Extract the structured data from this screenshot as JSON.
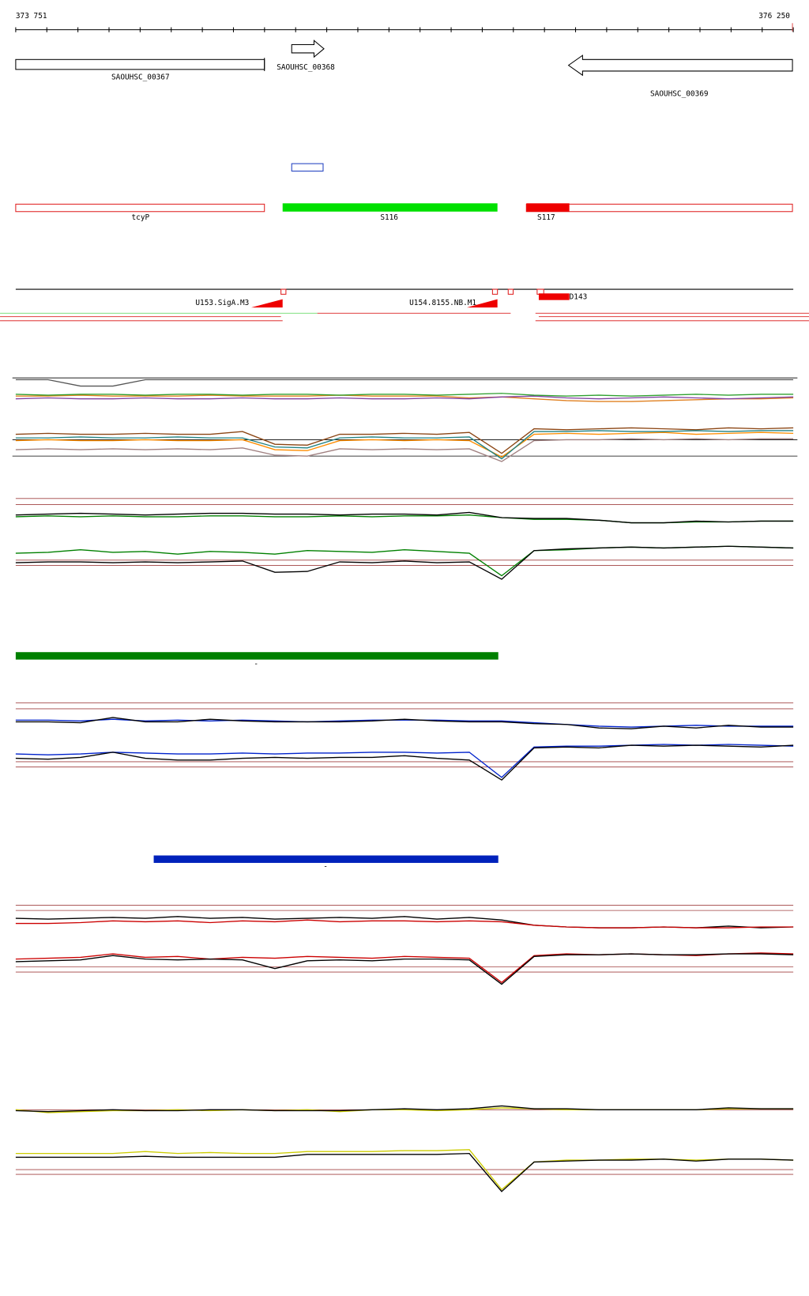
{
  "ruler": {
    "start": "373 751",
    "end": "376 250"
  },
  "genes": [
    {
      "label": "SAOUHSC_00367"
    },
    {
      "label": "SAOUHSC_00368"
    },
    {
      "label": "SAOUHSC_00369"
    }
  ],
  "features": [
    {
      "label": "tcyP"
    },
    {
      "label": "S116"
    },
    {
      "label": "S117"
    }
  ],
  "promoters": [
    {
      "label": "U153.SigA.M3"
    },
    {
      "label": "U154.8155.NB.M1"
    },
    {
      "label": "D143"
    }
  ],
  "bars": [
    {
      "color": "#008000",
      "label": "-"
    },
    {
      "color": "#0022bb",
      "label": "-"
    }
  ],
  "panels": [
    {
      "ylim": [
        0,
        10
      ],
      "reference": [
        {
          "color": "#000000",
          "value": 9.8
        },
        {
          "color": "#000000",
          "value": 3.0
        },
        {
          "color": "#000000",
          "value": 1.2
        }
      ],
      "series": [
        {
          "color": "#555555",
          "values": [
            9.6,
            9.6,
            8.9,
            8.9,
            9.6,
            9.6,
            9.6,
            9.6,
            9.6,
            9.6,
            9.6,
            9.6,
            9.6,
            9.6,
            9.6,
            9.6,
            9.6,
            9.6,
            9.6,
            9.6,
            9.6,
            9.6,
            9.6,
            9.6,
            9.6
          ]
        },
        {
          "color": "#e08020",
          "values": [
            7.8,
            7.8,
            7.9,
            7.8,
            7.8,
            7.8,
            7.9,
            7.8,
            7.8,
            7.8,
            7.9,
            7.8,
            7.8,
            7.8,
            7.6,
            7.7,
            7.5,
            7.3,
            7.2,
            7.2,
            7.3,
            7.4,
            7.5,
            7.5,
            7.6
          ]
        },
        {
          "color": "#8040a0",
          "values": [
            7.5,
            7.6,
            7.5,
            7.5,
            7.6,
            7.5,
            7.5,
            7.6,
            7.5,
            7.5,
            7.6,
            7.5,
            7.5,
            7.6,
            7.5,
            7.7,
            7.8,
            7.6,
            7.5,
            7.6,
            7.7,
            7.6,
            7.5,
            7.6,
            7.7
          ]
        },
        {
          "color": "#30a030",
          "values": [
            8.0,
            7.9,
            8.0,
            8.0,
            7.9,
            8.0,
            8.0,
            7.9,
            8.0,
            8.0,
            7.9,
            8.0,
            8.0,
            7.9,
            8.0,
            8.1,
            7.9,
            7.8,
            7.9,
            7.8,
            7.9,
            8.0,
            7.9,
            8.0,
            8.0
          ]
        },
        {
          "color": "#8b4513",
          "values": [
            3.6,
            3.7,
            3.6,
            3.6,
            3.7,
            3.6,
            3.6,
            3.9,
            2.5,
            2.4,
            3.6,
            3.6,
            3.7,
            3.6,
            3.8,
            1.5,
            4.2,
            4.1,
            4.2,
            4.3,
            4.2,
            4.1,
            4.3,
            4.2,
            4.3
          ]
        },
        {
          "color": "#ff8c00",
          "values": [
            2.9,
            3.0,
            2.9,
            2.9,
            3.0,
            2.9,
            2.9,
            3.0,
            1.9,
            1.8,
            2.9,
            3.0,
            2.9,
            3.0,
            2.9,
            1.1,
            3.6,
            3.7,
            3.6,
            3.7,
            3.8,
            3.6,
            3.7,
            3.8,
            3.7
          ]
        },
        {
          "color": "#208080",
          "values": [
            3.2,
            3.2,
            3.3,
            3.2,
            3.2,
            3.3,
            3.2,
            3.2,
            2.2,
            2.1,
            3.2,
            3.3,
            3.2,
            3.2,
            3.3,
            0.9,
            3.9,
            3.9,
            4.0,
            3.9,
            3.9,
            4.0,
            3.9,
            4.0,
            4.0
          ]
        },
        {
          "color": "#a08080",
          "values": [
            1.9,
            2.0,
            1.9,
            2.0,
            1.9,
            2.0,
            1.9,
            2.1,
            1.3,
            1.2,
            2.0,
            1.9,
            2.0,
            1.9,
            2.0,
            0.6,
            2.9,
            3.0,
            3.0,
            3.1,
            3.0,
            3.1,
            3.0,
            3.1,
            3.1
          ]
        }
      ]
    },
    {
      "ylim": [
        0,
        10
      ],
      "reference": [
        {
          "color": "#a04040",
          "value": 9.7
        },
        {
          "color": "#a04040",
          "value": 9.0
        },
        {
          "color": "#a04040",
          "value": 2.6
        },
        {
          "color": "#a04040",
          "value": 2.0
        }
      ],
      "series": [
        {
          "color": "#008000",
          "values": [
            7.6,
            7.7,
            7.6,
            7.7,
            7.6,
            7.6,
            7.7,
            7.7,
            7.6,
            7.6,
            7.7,
            7.6,
            7.7,
            7.7,
            7.8,
            7.5,
            7.3,
            7.3,
            7.2,
            6.9,
            6.9,
            7.0,
            7.0,
            7.1,
            7.1
          ]
        },
        {
          "color": "#000000",
          "values": [
            7.8,
            7.9,
            8.0,
            7.9,
            7.8,
            7.9,
            8.0,
            8.0,
            7.9,
            7.9,
            7.8,
            7.9,
            7.9,
            7.8,
            8.1,
            7.5,
            7.4,
            7.4,
            7.2,
            6.9,
            6.9,
            7.1,
            7.0,
            7.1,
            7.1
          ]
        },
        {
          "color": "#008000",
          "values": [
            3.4,
            3.5,
            3.8,
            3.5,
            3.6,
            3.3,
            3.6,
            3.5,
            3.3,
            3.7,
            3.6,
            3.5,
            3.8,
            3.6,
            3.4,
            0.8,
            3.7,
            3.8,
            4.0,
            4.1,
            4.0,
            4.1,
            4.2,
            4.1,
            4.0
          ]
        },
        {
          "color": "#000000",
          "values": [
            2.3,
            2.4,
            2.4,
            2.3,
            2.4,
            2.3,
            2.4,
            2.5,
            1.2,
            1.3,
            2.4,
            2.3,
            2.5,
            2.3,
            2.4,
            0.4,
            3.7,
            3.9,
            4.0,
            4.1,
            4.0,
            4.1,
            4.2,
            4.1,
            4.0
          ]
        }
      ]
    },
    {
      "ylim": [
        0,
        10
      ],
      "reference": [
        {
          "color": "#a04040",
          "value": 9.5
        },
        {
          "color": "#a04040",
          "value": 8.8
        },
        {
          "color": "#a04040",
          "value": 2.7
        },
        {
          "color": "#a04040",
          "value": 2.1
        }
      ],
      "series": [
        {
          "color": "#0022cc",
          "values": [
            7.5,
            7.5,
            7.4,
            7.6,
            7.4,
            7.5,
            7.4,
            7.5,
            7.4,
            7.3,
            7.4,
            7.5,
            7.5,
            7.5,
            7.4,
            7.4,
            7.2,
            7.0,
            6.8,
            6.7,
            6.8,
            6.9,
            6.8,
            6.8,
            6.8
          ]
        },
        {
          "color": "#000000",
          "values": [
            7.3,
            7.3,
            7.2,
            7.8,
            7.3,
            7.3,
            7.6,
            7.4,
            7.3,
            7.3,
            7.3,
            7.4,
            7.6,
            7.4,
            7.3,
            7.3,
            7.1,
            7.0,
            6.6,
            6.5,
            6.8,
            6.6,
            6.9,
            6.7,
            6.7
          ]
        },
        {
          "color": "#0022cc",
          "values": [
            3.6,
            3.5,
            3.6,
            3.8,
            3.7,
            3.6,
            3.6,
            3.7,
            3.6,
            3.7,
            3.7,
            3.8,
            3.8,
            3.7,
            3.8,
            0.9,
            4.4,
            4.5,
            4.5,
            4.6,
            4.7,
            4.6,
            4.7,
            4.6,
            4.5
          ]
        },
        {
          "color": "#000000",
          "values": [
            3.1,
            3.0,
            3.2,
            3.8,
            3.1,
            2.9,
            2.9,
            3.1,
            3.2,
            3.1,
            3.2,
            3.2,
            3.4,
            3.1,
            2.9,
            0.6,
            4.3,
            4.4,
            4.3,
            4.6,
            4.5,
            4.6,
            4.5,
            4.4,
            4.6
          ]
        }
      ]
    },
    {
      "ylim": [
        0,
        10
      ],
      "reference": [
        {
          "color": "#a04040",
          "value": 9.5
        },
        {
          "color": "#a04040",
          "value": 8.9
        },
        {
          "color": "#a04040",
          "value": 2.4
        },
        {
          "color": "#a04040",
          "value": 1.8
        }
      ],
      "series": [
        {
          "color": "#000000",
          "values": [
            8.0,
            7.9,
            8.0,
            8.1,
            8.0,
            8.2,
            8.0,
            8.1,
            7.9,
            8.0,
            8.1,
            8.0,
            8.2,
            7.9,
            8.1,
            7.8,
            7.2,
            7.0,
            6.9,
            6.9,
            7.0,
            6.9,
            7.1,
            6.9,
            7.0
          ]
        },
        {
          "color": "#cc0000",
          "values": [
            7.4,
            7.4,
            7.5,
            7.7,
            7.6,
            7.7,
            7.5,
            7.7,
            7.6,
            7.8,
            7.6,
            7.7,
            7.7,
            7.6,
            7.7,
            7.6,
            7.2,
            7.0,
            6.9,
            6.9,
            7.0,
            6.9,
            6.9,
            7.0,
            7.0
          ]
        },
        {
          "color": "#cc0000",
          "values": [
            3.3,
            3.4,
            3.5,
            3.9,
            3.5,
            3.6,
            3.3,
            3.5,
            3.4,
            3.6,
            3.5,
            3.4,
            3.6,
            3.5,
            3.4,
            0.6,
            3.7,
            3.9,
            3.8,
            3.9,
            3.8,
            3.7,
            3.9,
            4.0,
            3.9
          ]
        },
        {
          "color": "#000000",
          "values": [
            3.0,
            3.1,
            3.2,
            3.7,
            3.3,
            3.2,
            3.3,
            3.2,
            2.2,
            3.1,
            3.2,
            3.1,
            3.3,
            3.3,
            3.2,
            0.4,
            3.6,
            3.8,
            3.8,
            3.9,
            3.8,
            3.8,
            3.9,
            3.9,
            3.8
          ]
        }
      ]
    },
    {
      "ylim": [
        0,
        10
      ],
      "reference": [
        {
          "color": "#a04040",
          "value": 8.9
        },
        {
          "color": "#a04040",
          "value": 2.6
        },
        {
          "color": "#a04040",
          "value": 2.1
        }
      ],
      "series": [
        {
          "color": "#cccc00",
          "values": [
            8.9,
            8.6,
            8.7,
            8.8,
            8.8,
            8.9,
            8.8,
            8.9,
            8.8,
            8.9,
            8.7,
            8.9,
            8.9,
            8.8,
            8.9,
            9.1,
            9.0,
            8.9,
            8.9,
            8.9,
            8.9,
            8.9,
            9.0,
            9.0,
            9.0
          ]
        },
        {
          "color": "#000000",
          "values": [
            8.8,
            8.7,
            8.8,
            8.9,
            8.8,
            8.8,
            8.9,
            8.9,
            8.8,
            8.8,
            8.8,
            8.9,
            9.0,
            8.9,
            9.0,
            9.3,
            9.0,
            9.0,
            8.9,
            8.9,
            8.9,
            8.9,
            9.1,
            9.0,
            9.0
          ]
        },
        {
          "color": "#cccc00",
          "values": [
            4.3,
            4.3,
            4.3,
            4.3,
            4.5,
            4.3,
            4.4,
            4.3,
            4.3,
            4.5,
            4.5,
            4.5,
            4.6,
            4.6,
            4.7,
            0.5,
            3.4,
            3.6,
            3.6,
            3.7,
            3.7,
            3.6,
            3.7,
            3.7,
            3.6
          ]
        },
        {
          "color": "#000000",
          "values": [
            3.9,
            3.9,
            3.9,
            3.9,
            4.0,
            3.9,
            3.9,
            3.9,
            3.9,
            4.2,
            4.2,
            4.2,
            4.2,
            4.2,
            4.3,
            0.3,
            3.4,
            3.5,
            3.6,
            3.6,
            3.7,
            3.5,
            3.7,
            3.7,
            3.6
          ]
        }
      ]
    }
  ]
}
